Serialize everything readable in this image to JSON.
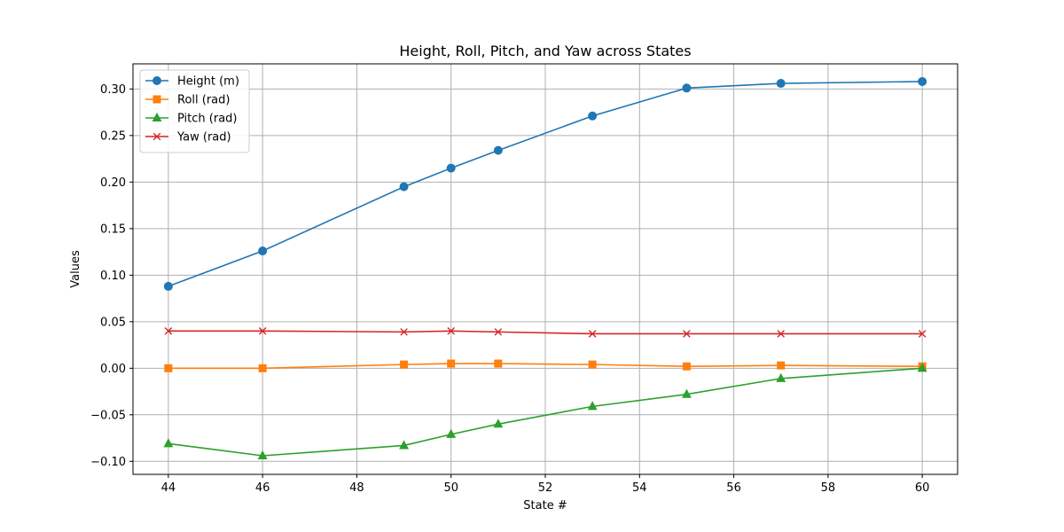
{
  "chart_data": {
    "type": "line",
    "title": "Height, Roll, Pitch, and Yaw across States",
    "xlabel": "State #",
    "ylabel": "Values",
    "x": [
      44,
      46,
      49,
      50,
      51,
      53,
      55,
      57,
      60
    ],
    "xlim": [
      43.25,
      60.75
    ],
    "ylim": [
      -0.114,
      0.327
    ],
    "xticks": [
      44,
      46,
      48,
      50,
      52,
      54,
      56,
      58,
      60
    ],
    "yticks": [
      -0.1,
      -0.05,
      0.0,
      0.05,
      0.1,
      0.15,
      0.2,
      0.25,
      0.3
    ],
    "ytick_labels": [
      "−0.10",
      "−0.05",
      "0.00",
      "0.05",
      "0.10",
      "0.15",
      "0.20",
      "0.25",
      "0.30"
    ],
    "grid": true,
    "legend_position": "top-left",
    "series": [
      {
        "name": "Height (m)",
        "color": "#1f77b4",
        "marker": "circle",
        "values": [
          0.088,
          0.126,
          0.195,
          0.215,
          0.234,
          0.271,
          0.301,
          0.306,
          0.308
        ]
      },
      {
        "name": "Roll (rad)",
        "color": "#ff7f0e",
        "marker": "square",
        "values": [
          0.0,
          0.0,
          0.004,
          0.005,
          0.005,
          0.004,
          0.002,
          0.003,
          0.002
        ]
      },
      {
        "name": "Pitch (rad)",
        "color": "#2ca02c",
        "marker": "triangle",
        "values": [
          -0.081,
          -0.094,
          -0.083,
          -0.071,
          -0.06,
          -0.041,
          -0.028,
          -0.011,
          0.0
        ]
      },
      {
        "name": "Yaw (rad)",
        "color": "#d62728",
        "marker": "x",
        "values": [
          0.04,
          0.04,
          0.039,
          0.04,
          0.039,
          0.037,
          0.037,
          0.037,
          0.037
        ]
      }
    ]
  }
}
